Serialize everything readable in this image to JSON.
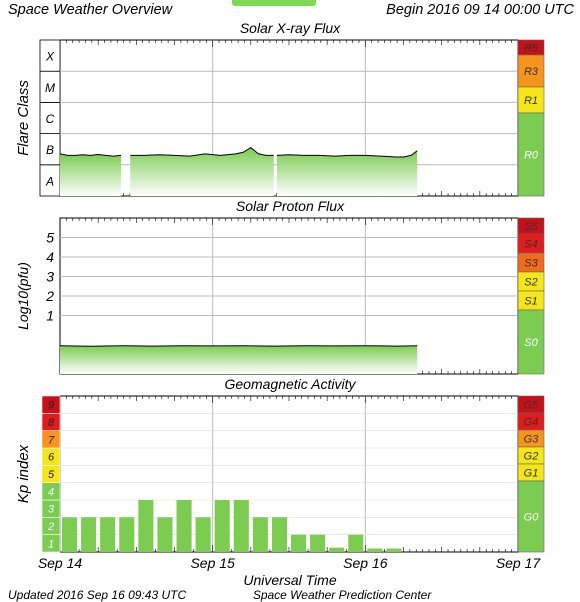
{
  "header": {
    "title": "Space Weather Overview",
    "begin": "Begin 2016 09 14 00:00 UTC"
  },
  "footer": {
    "updated": "Updated 2016 Sep 16 09:43 UTC",
    "source": "Space Weather Prediction Center"
  },
  "colors": {
    "green": "#7ccc52",
    "yellow": "#f5e61a",
    "orange": "#f7941d",
    "dark_orange": "#f26b1d",
    "red": "#e21b1b",
    "dark_red": "#c8101a",
    "data_line": "#000000",
    "fill_top": "#7ccc52",
    "fill_bottom": "#ffffff"
  },
  "chart_data": [
    {
      "type": "area",
      "title": "Solar X-ray Flux",
      "ylabel": "Flare Class",
      "y_categories": [
        "A",
        "B",
        "C",
        "M",
        "X"
      ],
      "scale_labels": [
        {
          "label": "R5",
          "color": "#c8101a"
        },
        {
          "label": "R3",
          "color": "#f7941d"
        },
        {
          "label": "R1",
          "color": "#f5e61a"
        },
        {
          "label": "R0",
          "color": "#7ccc52"
        }
      ],
      "x_ticks": [
        "Sep 14",
        "Sep 15",
        "Sep 16",
        "Sep 17"
      ],
      "xlim_days": [
        0,
        3
      ],
      "ylim_log_class": [
        0,
        5
      ],
      "segments": [
        {
          "x": [
            0.0,
            0.05,
            0.1,
            0.15,
            0.2,
            0.25,
            0.3,
            0.35,
            0.4
          ],
          "y": [
            1.35,
            1.3,
            1.3,
            1.32,
            1.3,
            1.33,
            1.3,
            1.28,
            1.3
          ]
        },
        {
          "x": [
            0.46,
            0.55,
            0.65,
            0.75,
            0.85,
            0.95,
            1.05,
            1.15,
            1.2,
            1.25,
            1.3,
            1.35,
            1.4
          ],
          "y": [
            1.3,
            1.3,
            1.32,
            1.3,
            1.28,
            1.35,
            1.3,
            1.35,
            1.4,
            1.55,
            1.35,
            1.3,
            1.3
          ]
        },
        {
          "x": [
            1.42,
            1.5,
            1.6,
            1.7,
            1.8,
            1.9,
            2.0,
            2.1,
            2.2,
            2.25,
            2.3,
            2.34
          ],
          "y": [
            1.3,
            1.32,
            1.3,
            1.3,
            1.28,
            1.3,
            1.3,
            1.28,
            1.25,
            1.25,
            1.3,
            1.45
          ]
        }
      ]
    },
    {
      "type": "area",
      "title": "Solar Proton Flux",
      "ylabel": "Log10(pfu)",
      "yticks": [
        1,
        2,
        3,
        4,
        5
      ],
      "ylim": [
        -2,
        6
      ],
      "scale_labels": [
        {
          "label": "S5",
          "color": "#c8101a"
        },
        {
          "label": "S4",
          "color": "#e21b1b"
        },
        {
          "label": "S3",
          "color": "#f26b1d"
        },
        {
          "label": "S2",
          "color": "#f5e61a"
        },
        {
          "label": "S1",
          "color": "#f5e61a"
        },
        {
          "label": "S0",
          "color": "#7ccc52"
        }
      ],
      "x_ticks": [
        "Sep 14",
        "Sep 15",
        "Sep 16",
        "Sep 17"
      ],
      "xlim_days": [
        0,
        3
      ],
      "segments": [
        {
          "x": [
            0.0,
            0.2,
            0.4,
            0.6,
            0.8,
            1.0,
            1.2,
            1.4,
            1.6,
            1.8,
            2.0,
            2.2,
            2.34
          ],
          "y": [
            -0.55,
            -0.58,
            -0.55,
            -0.57,
            -0.55,
            -0.56,
            -0.55,
            -0.57,
            -0.55,
            -0.56,
            -0.55,
            -0.57,
            -0.55
          ]
        }
      ]
    },
    {
      "type": "bar",
      "title": "Geomagnetic Activity",
      "ylabel": "Kp index",
      "xlabel": "Universal Time",
      "ylim": [
        0,
        9
      ],
      "kp_axis": [
        {
          "label": "1",
          "color": "#7ccc52"
        },
        {
          "label": "2",
          "color": "#7ccc52"
        },
        {
          "label": "3",
          "color": "#7ccc52"
        },
        {
          "label": "4",
          "color": "#7ccc52"
        },
        {
          "label": "5",
          "color": "#f5e61a"
        },
        {
          "label": "6",
          "color": "#f5e61a"
        },
        {
          "label": "7",
          "color": "#f7941d"
        },
        {
          "label": "8",
          "color": "#e21b1b"
        },
        {
          "label": "9",
          "color": "#c8101a"
        }
      ],
      "scale_labels": [
        {
          "label": "G5",
          "color": "#c8101a"
        },
        {
          "label": "G4",
          "color": "#e21b1b"
        },
        {
          "label": "G3",
          "color": "#f7941d"
        },
        {
          "label": "G2",
          "color": "#f5e61a"
        },
        {
          "label": "G1",
          "color": "#f5e61a"
        },
        {
          "label": "G0",
          "color": "#7ccc52"
        }
      ],
      "x_ticks": [
        "Sep 14",
        "Sep 15",
        "Sep 16",
        "Sep 17"
      ],
      "xlim_days": [
        0,
        3
      ],
      "bar_interval_hours": 3,
      "values": [
        2.0,
        2.0,
        2.0,
        2.0,
        3.0,
        2.0,
        3.0,
        2.0,
        3.0,
        3.0,
        2.0,
        2.0,
        1.0,
        1.0,
        0.25,
        1.0,
        0.2,
        0.2
      ]
    }
  ]
}
